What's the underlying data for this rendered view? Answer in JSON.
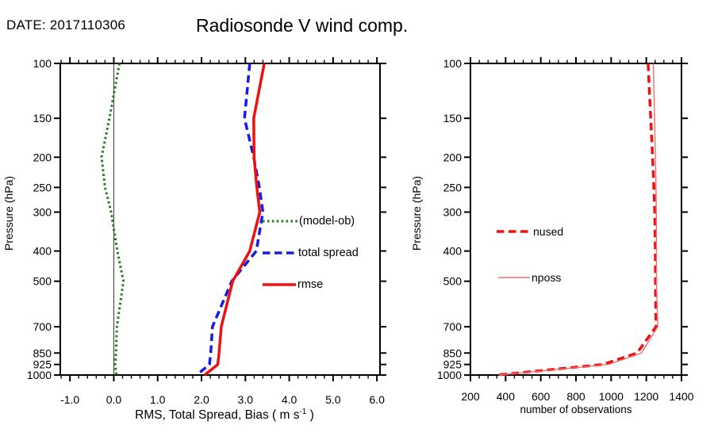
{
  "header": {
    "date_label": "DATE: 2017110306",
    "title": "Radiosonde V wind comp."
  },
  "labels": {
    "left_ylabel": "Pressure (hPa)",
    "right_ylabel": "Pressure (hPa)",
    "left_xlabel_pre": "RMS, Total Spread, Bias ( m s",
    "left_xlabel_sup": "-1",
    "left_xlabel_post": " )",
    "right_xlabel": "number of observations"
  },
  "colors": {
    "bias_green": "#1e7a1e",
    "spread_blue": "#1a1ae6",
    "rmse_red": "#ee1111",
    "nposs_light_red": "#f07070",
    "axis_black": "#000000",
    "zero_line": "#333333"
  },
  "chart_data": [
    {
      "type": "line",
      "title": "Radiosonde V wind comp.",
      "date": "2017110306",
      "xlabel": "RMS, Total Spread, Bias ( m s-1 )",
      "ylabel": "Pressure (hPa)",
      "yscale": "log",
      "ylim": [
        100,
        1000
      ],
      "yticks": [
        100,
        150,
        200,
        250,
        300,
        400,
        500,
        700,
        850,
        925,
        1000
      ],
      "ytick_labels": [
        "100",
        "150",
        "200",
        "250",
        "300",
        "400",
        "500",
        "700",
        "850",
        "925",
        "1000"
      ],
      "xlim": [
        -1.22,
        6.07
      ],
      "xticks": [
        -1.0,
        0.0,
        1.0,
        2.0,
        3.0,
        4.0,
        5.0,
        6.0
      ],
      "xtick_labels": [
        "-1.0",
        "0.0",
        "1.0",
        "2.0",
        "3.0",
        "4.0",
        "5.0",
        "6.0"
      ],
      "minor_tick_step": 0.2,
      "zero_reference_line": true,
      "legend_position": "inside-right",
      "grid": false,
      "pressure_levels": [
        100,
        150,
        200,
        250,
        300,
        400,
        500,
        700,
        850,
        925,
        1000
      ],
      "series": [
        {
          "name": "(model-ob)",
          "color": "#1e7a1e",
          "style": "dotted",
          "width": 3,
          "values": [
            0.13,
            -0.1,
            -0.28,
            -0.2,
            -0.06,
            0.08,
            0.22,
            0.07,
            0.05,
            0.03,
            0.06
          ]
        },
        {
          "name": "total spread",
          "color": "#1a1ae6",
          "style": "dashed",
          "width": 3.5,
          "values": [
            3.1,
            2.98,
            3.19,
            3.32,
            3.4,
            3.25,
            2.69,
            2.25,
            2.21,
            2.18,
            1.89
          ]
        },
        {
          "name": "rmse",
          "color": "#ee1111",
          "style": "solid",
          "width": 3.5,
          "values": [
            3.43,
            3.19,
            3.2,
            3.26,
            3.33,
            3.1,
            2.71,
            2.45,
            2.4,
            2.37,
            2.07
          ]
        }
      ]
    },
    {
      "type": "line",
      "title": "",
      "xlabel": "number of observations",
      "ylabel": "Pressure (hPa)",
      "yscale": "log",
      "ylim": [
        100,
        1000
      ],
      "yticks": [
        100,
        150,
        200,
        250,
        300,
        400,
        500,
        700,
        850,
        925,
        1000
      ],
      "ytick_labels": [
        "100",
        "150",
        "200",
        "250",
        "300",
        "400",
        "500",
        "700",
        "850",
        "925",
        "1000"
      ],
      "xlim": [
        200,
        1400
      ],
      "xticks": [
        200,
        400,
        600,
        800,
        1000,
        1200,
        1400
      ],
      "xtick_labels": [
        "200",
        "400",
        "600",
        "800",
        "1000",
        "1200",
        "1400"
      ],
      "minor_tick_step": 50,
      "zero_reference_line": false,
      "legend_position": "inside-left",
      "grid": false,
      "pressure_levels": [
        100,
        150,
        200,
        250,
        300,
        400,
        500,
        700,
        850,
        925,
        1000
      ],
      "series": [
        {
          "name": "nused",
          "color": "#ee1111",
          "style": "dashed",
          "width": 3.5,
          "values": [
            1210,
            1225,
            1236,
            1243,
            1248,
            1251,
            1252,
            1255,
            1147,
            953,
            350
          ]
        },
        {
          "name": "nposs",
          "color": "#f07070",
          "style": "solid",
          "width": 1.4,
          "values": [
            1240,
            1247,
            1252,
            1255,
            1257,
            1258,
            1258,
            1265,
            1172,
            985,
            362
          ]
        }
      ]
    }
  ]
}
